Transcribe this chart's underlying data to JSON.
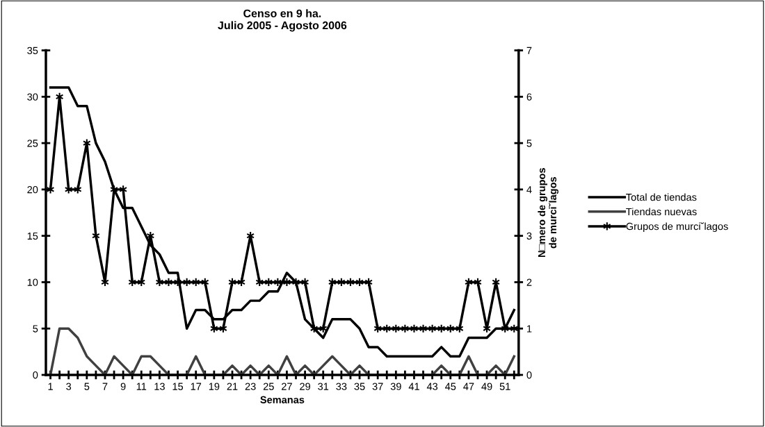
{
  "chart_data": {
    "type": "line",
    "title": "Censo en 9 ha.\nJulio 2005 - Agosto 2006",
    "xlabel": "Semanas",
    "y2label": "N□mero de grupos\nde murci˘lagos",
    "categories": [
      "1",
      null,
      "3",
      null,
      "5",
      null,
      "7",
      null,
      "9",
      null,
      "11",
      null,
      "13",
      null,
      "15",
      null,
      "17",
      null,
      "19",
      null,
      "21",
      null,
      "23",
      null,
      "25",
      null,
      "27",
      null,
      "29",
      null,
      "31",
      null,
      "33",
      null,
      "35",
      null,
      "37",
      null,
      "39",
      null,
      "41",
      null,
      "43",
      null,
      "45",
      null,
      "47",
      null,
      "49",
      null,
      "51",
      null
    ],
    "series": [
      {
        "name": "Total de tiendas",
        "color": "#000000",
        "marker": "none",
        "values": [
          31,
          31,
          31,
          29,
          29,
          25,
          23,
          20,
          18,
          18,
          16,
          14,
          13,
          11,
          11,
          5,
          7,
          7,
          6,
          6,
          7,
          7,
          8,
          8,
          9,
          9,
          11,
          10,
          6,
          5,
          4,
          6,
          6,
          6,
          5,
          3,
          3,
          2,
          2,
          2,
          2,
          2,
          2,
          3,
          2,
          2,
          4,
          4,
          4,
          5,
          5,
          7
        ]
      },
      {
        "name": "Tiendas nuevas",
        "color": "#404040",
        "marker": "none",
        "values": [
          0,
          5,
          5,
          4,
          2,
          1,
          0,
          2,
          1,
          0,
          2,
          2,
          1,
          0,
          0,
          0,
          2,
          0,
          0,
          0,
          1,
          0,
          1,
          0,
          1,
          0,
          2,
          0,
          1,
          0,
          1,
          2,
          1,
          0,
          1,
          0,
          0,
          0,
          0,
          0,
          0,
          0,
          0,
          1,
          0,
          0,
          2,
          0,
          0,
          1,
          0,
          2
        ]
      },
      {
        "name": "Grupos de murci˘lagos",
        "color": "#000000",
        "marker": "cross",
        "axis": "y2",
        "values": [
          4,
          6,
          4,
          4,
          5,
          3,
          2,
          4,
          4,
          2,
          2,
          3,
          2,
          2,
          2,
          2,
          2,
          2,
          1,
          1,
          2,
          2,
          3,
          2,
          2,
          2,
          2,
          2,
          2,
          1,
          1,
          2,
          2,
          2,
          2,
          2,
          1,
          1,
          1,
          1,
          1,
          1,
          1,
          1,
          1,
          1,
          2,
          2,
          1,
          2,
          1,
          1
        ]
      }
    ],
    "ylim": [
      0,
      35
    ],
    "yticks": [
      0,
      5,
      10,
      15,
      20,
      25,
      30,
      35
    ],
    "y2lim": [
      0,
      7
    ],
    "y2ticks": [
      0,
      1,
      2,
      3,
      4,
      5,
      6,
      7
    ],
    "grid": false,
    "legend": "right",
    "line_style": "solid"
  }
}
